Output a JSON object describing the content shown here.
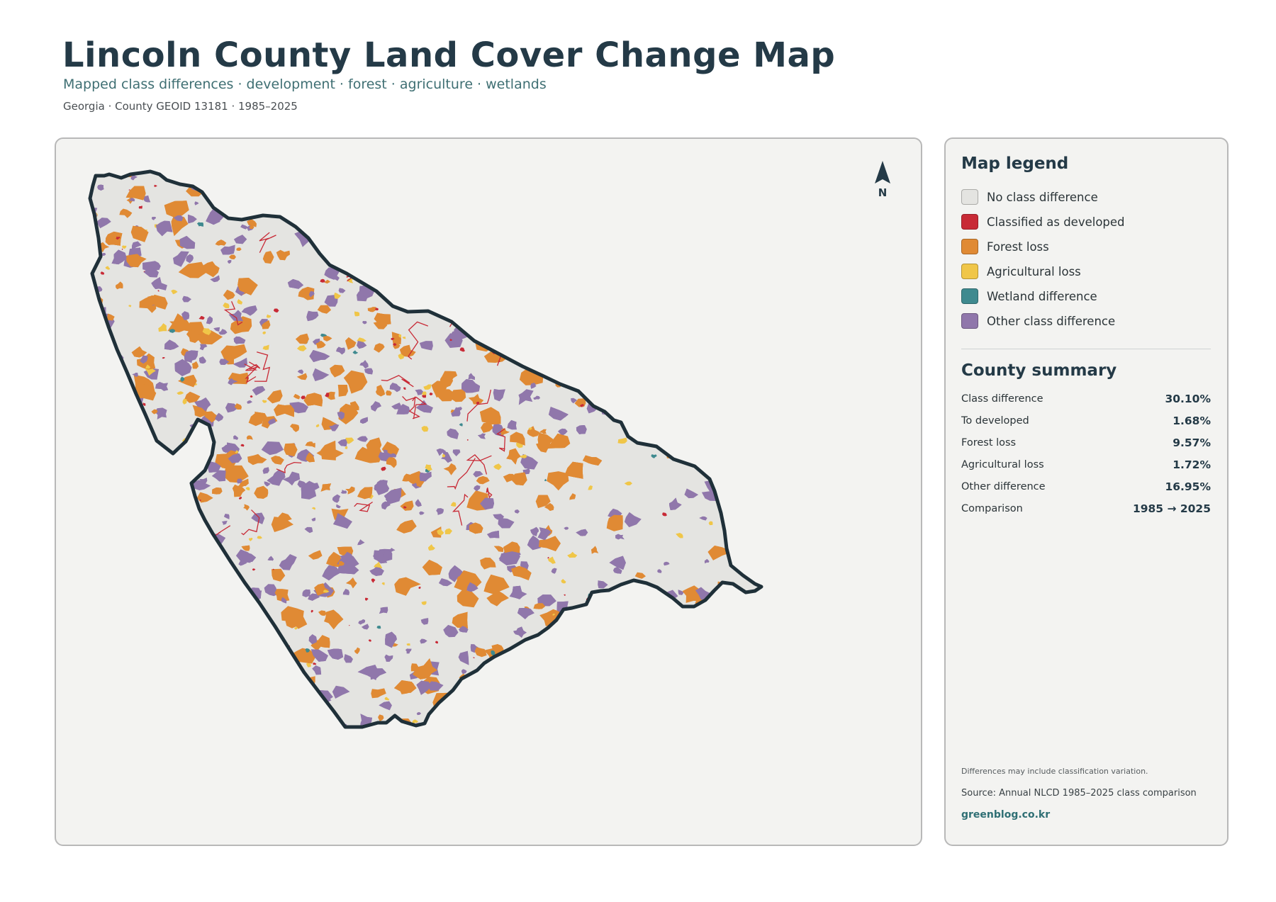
{
  "header": {
    "title": "Lincoln County Land Cover Change Map",
    "subtitle": "Mapped class differences · development · forest · agriculture · wetlands",
    "meta": "Georgia · County GEOID 13181 · 1985–2025"
  },
  "map": {
    "north_label": "N",
    "boundary_color": "#1f3039",
    "fill_color": "#e4e4e1"
  },
  "legend": {
    "title": "Map legend",
    "items": [
      {
        "label": "No class difference",
        "color": "#e4e4e1"
      },
      {
        "label": "Classified as developed",
        "color": "#c82a36"
      },
      {
        "label": "Forest loss",
        "color": "#e08a34"
      },
      {
        "label": "Agricultural loss",
        "color": "#f0c648"
      },
      {
        "label": "Wetland difference",
        "color": "#3f8a8f"
      },
      {
        "label": "Other class difference",
        "color": "#9077ab"
      }
    ]
  },
  "summary": {
    "title": "County summary",
    "rows": [
      {
        "label": "Class difference",
        "value": "30.10%"
      },
      {
        "label": "To developed",
        "value": "1.68%"
      },
      {
        "label": "Forest loss",
        "value": "9.57%"
      },
      {
        "label": "Agricultural loss",
        "value": "1.72%"
      },
      {
        "label": "Other difference",
        "value": "16.95%"
      },
      {
        "label": "Comparison",
        "value": "1985 → 2025"
      }
    ]
  },
  "footer": {
    "note": "Differences may include classification variation.",
    "source": "Source: Annual NLCD 1985–2025 class comparison",
    "credit": "greenblog.co.kr"
  }
}
